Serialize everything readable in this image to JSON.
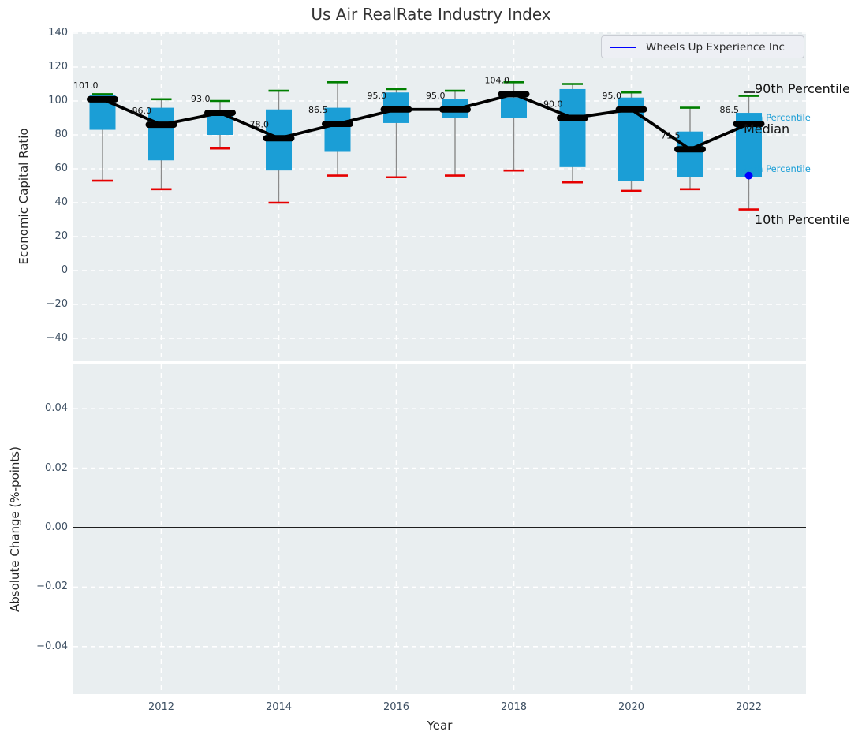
{
  "title": "Us Air RealRate Industry Index",
  "axes": {
    "x_label": "Year",
    "x_tick_years": [
      2012,
      2014,
      2016,
      2018,
      2020,
      2022
    ],
    "x_tick_labels": [
      "2012",
      "2014",
      "2016",
      "2018",
      "2020",
      "2022"
    ],
    "top_y_label": "Economic Capital Ratio",
    "top_y_ticks": [
      {
        "v": 140,
        "label": "140"
      },
      {
        "v": 120,
        "label": "120"
      },
      {
        "v": 100,
        "label": "100"
      },
      {
        "v": 80,
        "label": "80"
      },
      {
        "v": 60,
        "label": "60"
      },
      {
        "v": 40,
        "label": "40"
      },
      {
        "v": 20,
        "label": "20"
      },
      {
        "v": 0,
        "label": "0"
      },
      {
        "v": -20,
        "label": "−20"
      },
      {
        "v": -40,
        "label": "−40"
      }
    ],
    "bottom_y_label": "Absolute Change (%-points)",
    "bottom_y_ticks": [
      {
        "v": 0.04,
        "label": "0.04"
      },
      {
        "v": 0.02,
        "label": "0.02"
      },
      {
        "v": 0.0,
        "label": "0.00"
      },
      {
        "v": -0.02,
        "label": "−0.02"
      },
      {
        "v": -0.04,
        "label": "−0.04"
      }
    ]
  },
  "legend": {
    "label": "Wheels Up Experience Inc"
  },
  "annotations": {
    "p90": "90th Percentile",
    "p75": "75th Percentile",
    "median": "Median",
    "p25": "25th Percentile",
    "p10": "10th Percentile"
  },
  "colors": {
    "box": "#1b9ed6",
    "whisker": "#8a8a8a",
    "cap_high": "#007f00",
    "cap_low": "#e60000",
    "median_line": "#000000",
    "company": "#0000ff",
    "panel_bg": "#e9eef0",
    "grid": "#ffffff",
    "tick_text": "#3e5063",
    "zero_line": "#000000"
  },
  "chart_data": [
    {
      "type": "box",
      "title": "Us Air RealRate Industry Index",
      "xlabel": "Year",
      "ylabel": "Economic Capital Ratio",
      "ylim": [
        -54,
        141
      ],
      "grid": true,
      "legend_position": "upper right",
      "whisker_percentiles": [
        10,
        90
      ],
      "box_percentiles": [
        25,
        75
      ],
      "years": [
        2011,
        2012,
        2013,
        2014,
        2015,
        2016,
        2017,
        2018,
        2019,
        2020,
        2021,
        2022
      ],
      "p10": [
        53,
        48,
        72,
        40,
        56,
        55,
        56,
        59,
        52,
        47,
        48,
        36
      ],
      "p25": [
        83,
        65,
        80,
        59,
        70,
        87,
        90,
        90,
        61,
        53,
        55,
        55
      ],
      "median": [
        101,
        86,
        93,
        78,
        86.5,
        95,
        95,
        104,
        90,
        95,
        71.5,
        86.5
      ],
      "p75": [
        103.5,
        96,
        94.5,
        95,
        96,
        105,
        101,
        102,
        107,
        102,
        82,
        93
      ],
      "p90": [
        104,
        101,
        100,
        106,
        111,
        107,
        106,
        111,
        110,
        105,
        96,
        103
      ],
      "median_labels": [
        "101.0",
        "86.0",
        "93.0",
        "78.0",
        "86.5",
        "95.0",
        "95.0",
        "104.0",
        "90.0",
        "95.0",
        "71.5",
        "86.5"
      ],
      "company_point": {
        "name": "Wheels Up Experience Inc",
        "year": 2022,
        "value": 56
      }
    },
    {
      "type": "line",
      "ylabel": "Absolute Change (%-points)",
      "ylim": [
        -0.055,
        0.055
      ],
      "zero_line": 0.0,
      "grid": true,
      "series": []
    }
  ]
}
